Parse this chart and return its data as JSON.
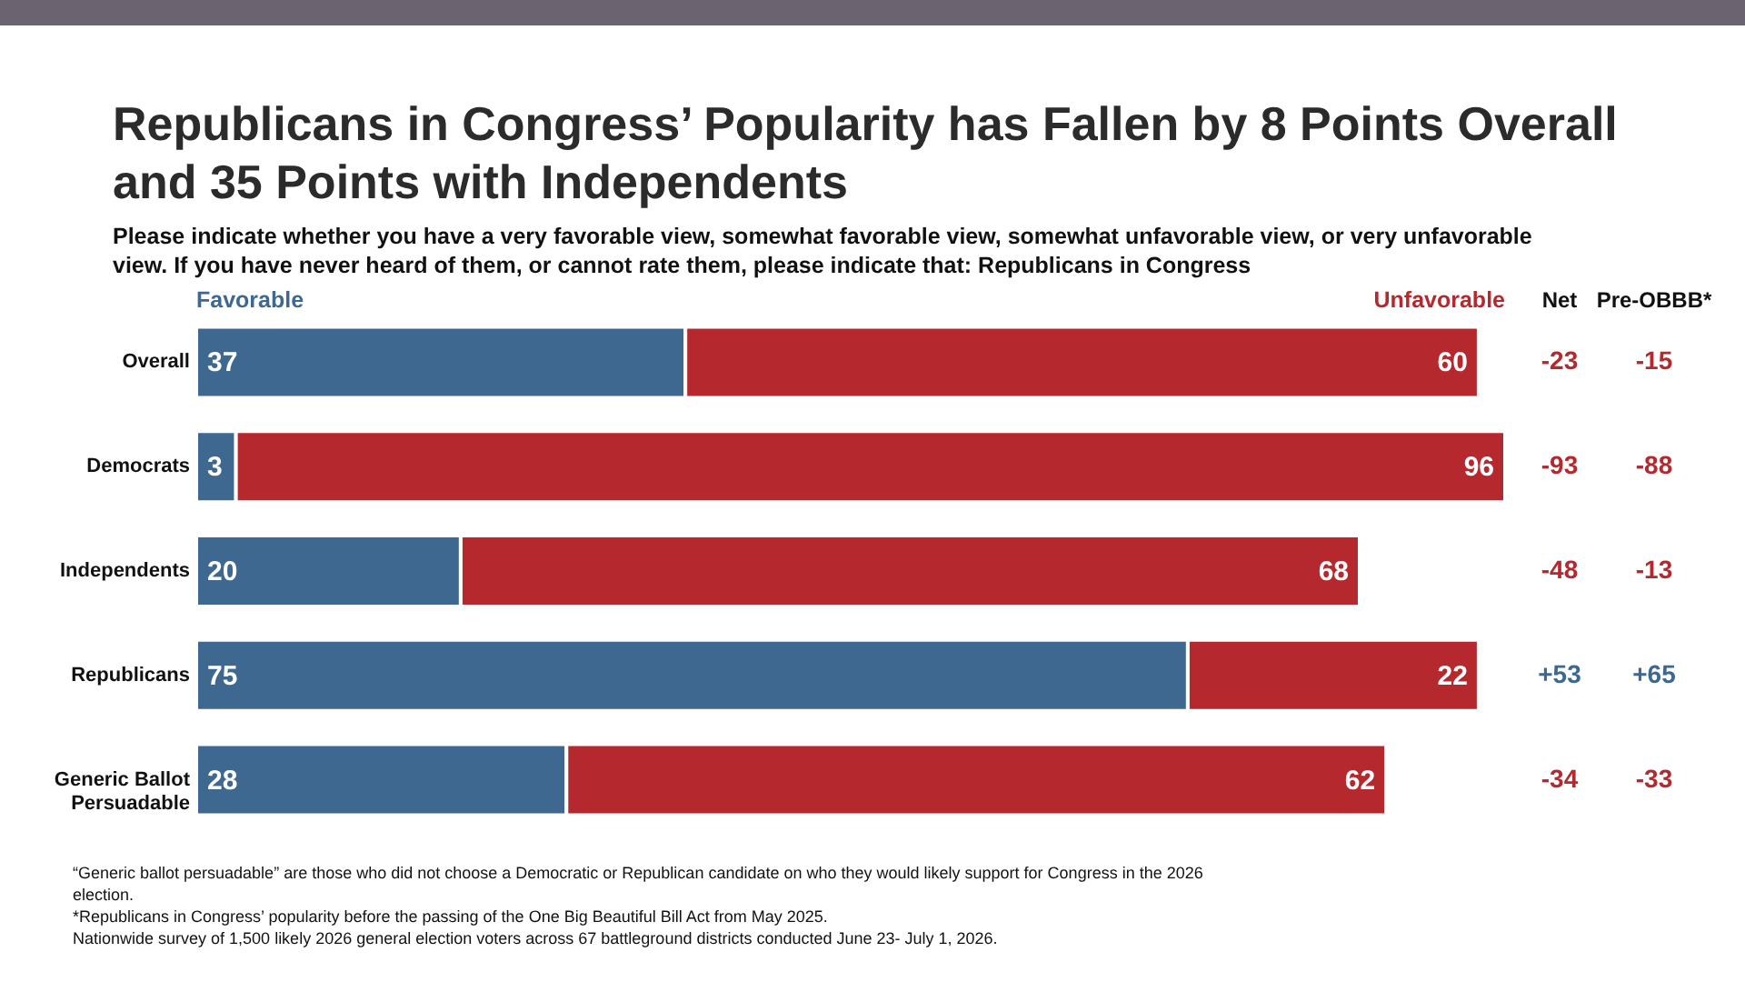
{
  "chart_data": {
    "type": "bar",
    "orientation": "horizontal",
    "stacked": true,
    "data_labels": true,
    "title": "Republicans in Congress’ Popularity has Fallen by 8 Points Overall and 35 Points with Independents",
    "subtitle": "Please indicate whether you have a very favorable view, somewhat favorable view, somewhat unfavorable view, or very unfavorable view. If you have never heard of them, or cannot rate them, please indicate that: Republicans in Congress",
    "categories": [
      "Overall",
      "Democrats",
      "Independents",
      "Republicans",
      "Generic Ballot Persuadable"
    ],
    "series": [
      {
        "name": "Favorable",
        "color": "#3e6890",
        "values": [
          37,
          3,
          20,
          75,
          28
        ]
      },
      {
        "name": "Unfavorable",
        "color": "#b5292e",
        "values": [
          60,
          96,
          68,
          22,
          62
        ]
      }
    ],
    "annotations": [
      "Net",
      "Pre-OBBB*",
      "-23",
      "-15",
      "-93",
      "-88",
      "-48",
      "-13",
      "+53",
      "+65",
      "-34",
      "-33",
      "“Generic ballot persuadable” are those who did not choose a Democratic or Republican candidate on who they would likely support for Congress in the 2026 election.",
      "*Republicans in Congress’ popularity before the passing of the One Big Beautiful Bill Act from May 2025.",
      "Nationwide survey of 1,500 likely 2026 general election voters across 67 battleground districts conducted June 23- July 1, 2026."
    ]
  }
}
